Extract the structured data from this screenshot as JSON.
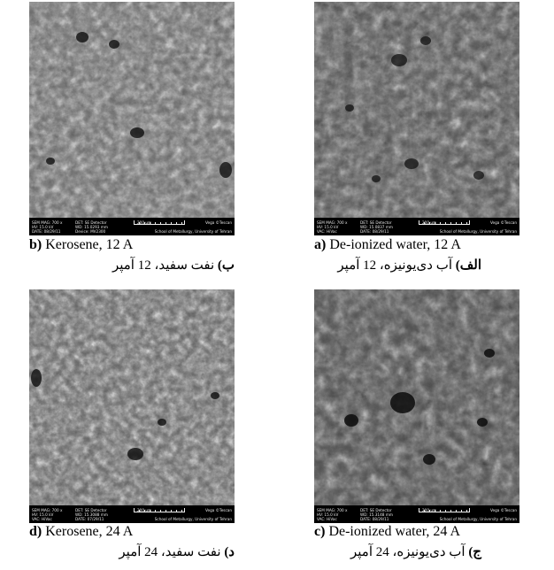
{
  "figure": {
    "panels": [
      {
        "id": "a",
        "caption_en_label": "a)",
        "caption_en_text": "De-ionized water, 12 A",
        "caption_fa_label": "الف)",
        "caption_fa_text": "آب دی‌یونیزه، 12 آمپر",
        "databar": {
          "line1": "SEM MAG: 700 x",
          "line2": "HV: 15.0 kV",
          "line3": "VAC: HiVac",
          "line4": "DET: SE Detector",
          "line5": "WD: 15.0837 mm",
          "line6": "DATE: 08/29/11",
          "scale": "200 um",
          "vendor": "Vega ©Tescan",
          "lab": "School of Metallurgy, University of Tehran"
        }
      },
      {
        "id": "b",
        "caption_en_label": "b)",
        "caption_en_text": "Kerosene, 12 A",
        "caption_fa_label": "ب)",
        "caption_fa_text": "نفت سفید، 12 آمپر",
        "databar": {
          "line1": "SEM MAG: 700 x",
          "line2": "HV: 15.0 kV",
          "line3": "DATE: 08/29/11",
          "line4": "DET: SE Detector",
          "line5": "WD: 15.0293 mm",
          "line6": "Device: MV2300",
          "scale": "200 um",
          "vendor": "Vega ©Tescan",
          "lab": "School of Metallurgy, University of Tehran"
        }
      },
      {
        "id": "c",
        "caption_en_label": "c)",
        "caption_en_text": "De-ionized water, 24 A",
        "caption_fa_label": "ج)",
        "caption_fa_text": "آب دی‌یونیزه، 24 آمپر",
        "databar": {
          "line1": "SEM MAG: 700 x",
          "line2": "HV: 15.0 kV",
          "line3": "VAC: HiVac",
          "line4": "DET: SE Detector",
          "line5": "WD: 15.3148 mm",
          "line6": "DATE: 08/29/11",
          "scale": "200 um",
          "vendor": "Vega ©Tescan",
          "lab": "School of Metallurgy, University of Tehran"
        }
      },
      {
        "id": "d",
        "caption_en_label": "d)",
        "caption_en_text": "Kerosene, 24 A",
        "caption_fa_label": "د)",
        "caption_fa_text": "نفت سفید، 24 آمپر",
        "databar": {
          "line1": "SEM MAG: 700 x",
          "line2": "HV: 15.0 kV",
          "line3": "VAC: HiVac",
          "line4": "DET: SE Detector",
          "line5": "WD: 15.3088 mm",
          "line6": "DATE: 07/29/11",
          "scale": "200 um",
          "vendor": "Vega ©Tescan",
          "lab": "School of Metallurgy, University of Tehran"
        }
      }
    ]
  }
}
